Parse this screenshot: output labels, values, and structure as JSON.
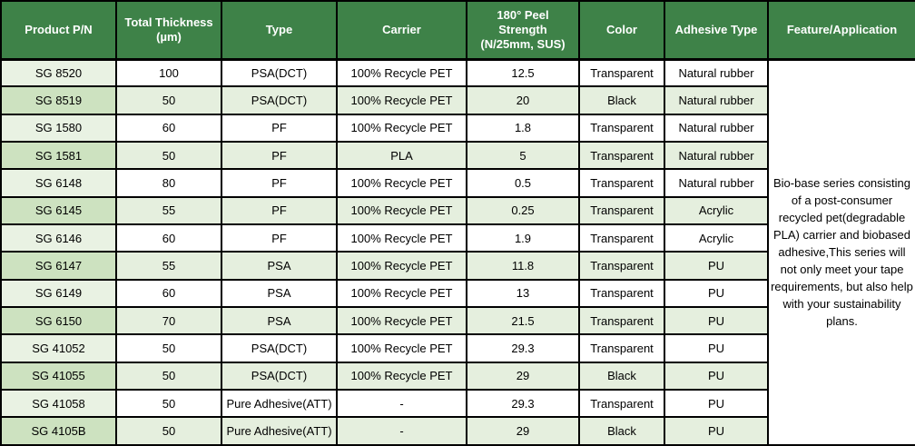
{
  "colors": {
    "header_bg": "#3e8248",
    "header_text": "#ffffff",
    "row_alt_green": "#e5efde",
    "row_white": "#ffffff",
    "first_col_light": "#e9f2e3",
    "first_col_dark": "#cde2c0",
    "border": "#000000",
    "body_text": "#000000"
  },
  "table": {
    "columns": [
      "Product P/N",
      "Total Thickness\n(µm)",
      "Type",
      "Carrier",
      "180° Peel\nStrength\n(N/25mm, SUS)",
      "Color",
      "Adhesive Type",
      "Feature/Application"
    ],
    "rows": [
      {
        "pn": "SG 8520",
        "thickness": "100",
        "type": "PSA(DCT)",
        "carrier": "100% Recycle PET",
        "peel": "12.5",
        "color": "Transparent",
        "adhesive": "Natural rubber"
      },
      {
        "pn": "SG 8519",
        "thickness": "50",
        "type": "PSA(DCT)",
        "carrier": "100% Recycle PET",
        "peel": "20",
        "color": "Black",
        "adhesive": "Natural rubber"
      },
      {
        "pn": "SG 1580",
        "thickness": "60",
        "type": "PF",
        "carrier": "100% Recycle PET",
        "peel": "1.8",
        "color": "Transparent",
        "adhesive": "Natural rubber"
      },
      {
        "pn": "SG 1581",
        "thickness": "50",
        "type": "PF",
        "carrier": "PLA",
        "peel": "5",
        "color": "Transparent",
        "adhesive": "Natural rubber"
      },
      {
        "pn": "SG 6148",
        "thickness": "80",
        "type": "PF",
        "carrier": "100% Recycle PET",
        "peel": "0.5",
        "color": "Transparent",
        "adhesive": "Natural rubber"
      },
      {
        "pn": "SG 6145",
        "thickness": "55",
        "type": "PF",
        "carrier": "100% Recycle PET",
        "peel": "0.25",
        "color": "Transparent",
        "adhesive": "Acrylic"
      },
      {
        "pn": "SG 6146",
        "thickness": "60",
        "type": "PF",
        "carrier": "100% Recycle PET",
        "peel": "1.9",
        "color": "Transparent",
        "adhesive": "Acrylic"
      },
      {
        "pn": "SG 6147",
        "thickness": "55",
        "type": "PSA",
        "carrier": "100% Recycle PET",
        "peel": "11.8",
        "color": "Transparent",
        "adhesive": "PU"
      },
      {
        "pn": "SG 6149",
        "thickness": "60",
        "type": "PSA",
        "carrier": "100% Recycle PET",
        "peel": "13",
        "color": "Transparent",
        "adhesive": "PU"
      },
      {
        "pn": "SG 6150",
        "thickness": "70",
        "type": "PSA",
        "carrier": "100% Recycle PET",
        "peel": "21.5",
        "color": "Transparent",
        "adhesive": "PU"
      },
      {
        "pn": "SG 41052",
        "thickness": "50",
        "type": "PSA(DCT)",
        "carrier": "100% Recycle PET",
        "peel": "29.3",
        "color": "Transparent",
        "adhesive": "PU"
      },
      {
        "pn": "SG 41055",
        "thickness": "50",
        "type": "PSA(DCT)",
        "carrier": "100% Recycle PET",
        "peel": "29",
        "color": "Black",
        "adhesive": "PU"
      },
      {
        "pn": "SG 41058",
        "thickness": "50",
        "type": "Pure Adhesive(ATT)",
        "carrier": "-",
        "peel": "29.3",
        "color": "Transparent",
        "adhesive": "PU"
      },
      {
        "pn": "SG 4105B",
        "thickness": "50",
        "type": "Pure Adhesive(ATT)",
        "carrier": "-",
        "peel": "29",
        "color": "Black",
        "adhesive": "PU"
      }
    ],
    "feature_text": "Bio-base series consisting of a post-consumer recycled pet(degradable PLA) carrier and  biobased adhesive,This series will not only meet your tape requirements, but also help with your sustainability plans."
  }
}
